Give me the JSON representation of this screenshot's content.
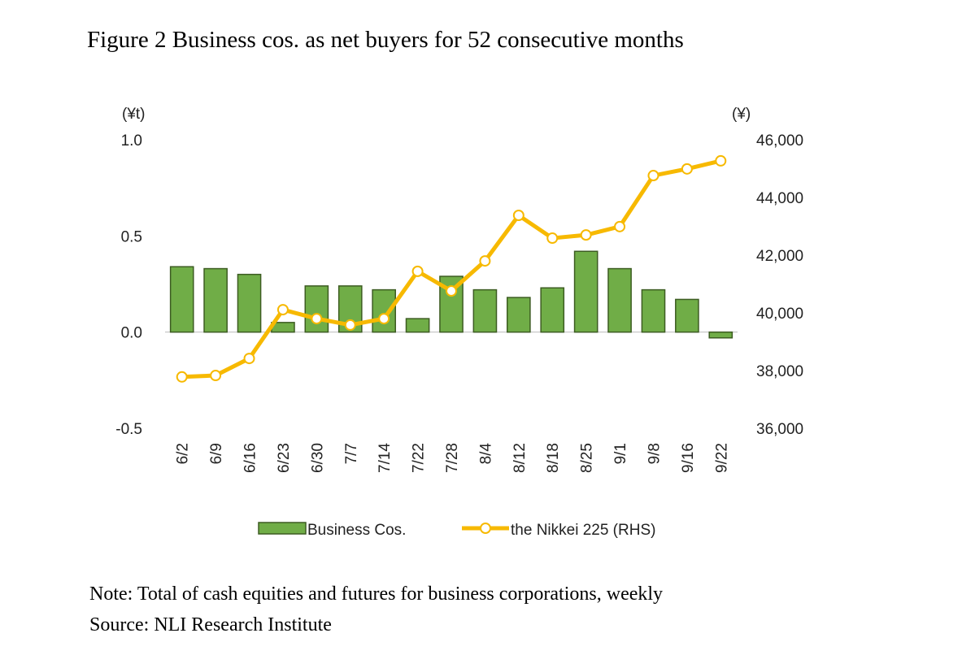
{
  "chart_data": {
    "type": "bar_line",
    "title": "Figure 2   Business cos. as net buyers for 52 consecutive months",
    "y_label": "(¥t)",
    "y2_label": "(¥)",
    "categories": [
      "6/2",
      "6/9",
      "6/16",
      "6/23",
      "6/30",
      "7/7",
      "7/14",
      "7/22",
      "7/28",
      "8/4",
      "8/12",
      "8/18",
      "8/25",
      "9/1",
      "9/8",
      "9/16",
      "9/22"
    ],
    "series": [
      {
        "name": "Business Cos.",
        "type": "bar",
        "color": "#70ad47",
        "values": [
          0.34,
          0.33,
          0.3,
          0.05,
          0.24,
          0.24,
          0.22,
          0.07,
          0.29,
          0.22,
          0.18,
          0.23,
          0.42,
          0.33,
          0.22,
          0.17,
          -0.03
        ]
      },
      {
        "name": "the Nikkei 225 (RHS)",
        "type": "line",
        "axis": "y2",
        "color": "#f7b900",
        "values": [
          37780,
          37830,
          38420,
          40110,
          39800,
          39580,
          39800,
          41440,
          40760,
          41800,
          43380,
          42590,
          42700,
          42990,
          44760,
          44990,
          45270
        ]
      }
    ],
    "ylim": [
      -0.5,
      1.0
    ],
    "yticks": [
      {
        "value": -0.5,
        "label": "-0.5"
      },
      {
        "value": 0,
        "label": "0.0"
      },
      0.5,
      {
        "value": 1,
        "label": "1.0"
      }
    ],
    "y2lim": [
      36000,
      46000
    ],
    "y2ticks": [
      {
        "value": 36000,
        "label": "36,000"
      },
      {
        "value": 38000,
        "label": "38,000"
      },
      {
        "value": 40000,
        "label": "40,000"
      },
      {
        "value": 42000,
        "label": "42,000"
      },
      {
        "value": 44000,
        "label": "44,000"
      },
      {
        "value": 46000,
        "label": "46,000"
      }
    ],
    "notes": [
      "Note: Total of cash equities and futures for business corporations, weekly",
      "Source: NLI Research Institute"
    ]
  }
}
